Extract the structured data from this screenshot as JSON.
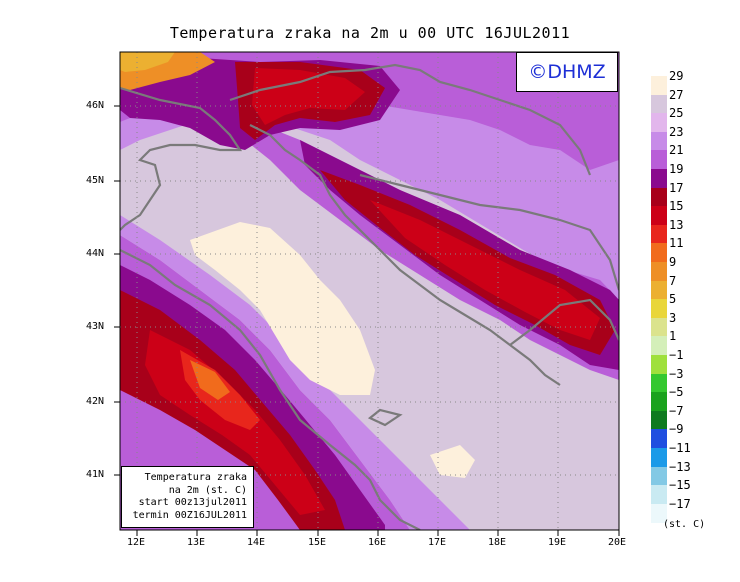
{
  "title": "Temperatura zraka na 2m u 00 UTC 16JUL2011",
  "copyright": "©DHMZ",
  "info_box": [
    "Temperatura zraka",
    "na 2m (st. C)",
    "start 00z13jul2011",
    "termin 00Z16JUL2011"
  ],
  "units": "(st. C)",
  "lat_labels": [
    "46N",
    "45N",
    "44N",
    "43N",
    "42N",
    "41N"
  ],
  "lon_labels": [
    "12E",
    "13E",
    "14E",
    "15E",
    "16E",
    "17E",
    "18E",
    "19E",
    "20E"
  ],
  "legend": {
    "labels": [
      "29",
      "27",
      "25",
      "23",
      "21",
      "19",
      "17",
      "15",
      "13",
      "11",
      "9",
      "7",
      "5",
      "3",
      "1",
      "−1",
      "−3",
      "−5",
      "−7",
      "−9",
      "−11",
      "−13",
      "−15",
      "−17"
    ],
    "colors": [
      "#fdf0dc",
      "#d7c7dd",
      "#e2b6ec",
      "#c78be8",
      "#b95ed8",
      "#8a0a8e",
      "#a8001a",
      "#cc0017",
      "#e8261c",
      "#f16b1c",
      "#ee8f26",
      "#ecb031",
      "#e9d63a",
      "#dbe38d",
      "#d4efb9",
      "#9fe03c",
      "#34c82f",
      "#1aa21d",
      "#0e7a1f",
      "#1f4ee0",
      "#1b9ae8",
      "#83c9e5",
      "#c9eaf2",
      "#ecf8fb"
    ]
  },
  "colors": {
    "coast": "#7a7a7a",
    "grid": "#888888",
    "frame": "#000000",
    "copyright_text": "#1d2fd6"
  }
}
